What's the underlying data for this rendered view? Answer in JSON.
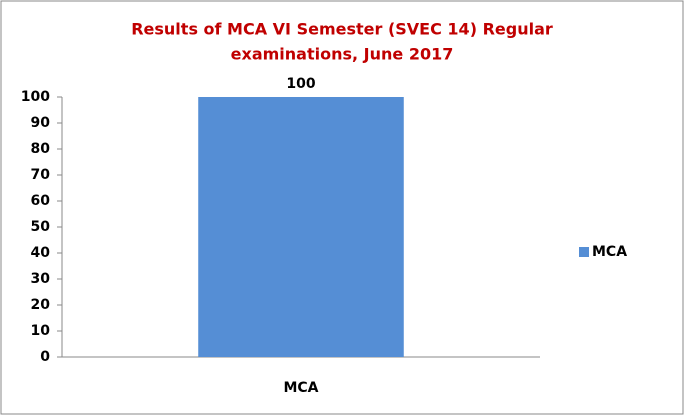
{
  "chart_data": {
    "type": "bar",
    "title": [
      "Results of MCA VI Semester (SVEC 14) Regular",
      "examinations,  June 2017"
    ],
    "categories": [
      "MCA"
    ],
    "series": [
      {
        "name": "MCA",
        "color": "#558ed5",
        "values": [
          100
        ]
      }
    ],
    "ylim": [
      0,
      100
    ],
    "yticks": [
      0,
      10,
      20,
      30,
      40,
      50,
      60,
      70,
      80,
      90,
      100
    ],
    "grid": false,
    "legend": "right",
    "data_labels": true
  }
}
